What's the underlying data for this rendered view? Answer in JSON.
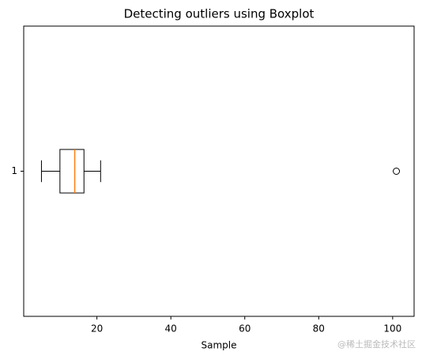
{
  "chart_data": {
    "type": "boxplot",
    "orientation": "horizontal",
    "title": "Detecting outliers using Boxplot",
    "xlabel": "Sample",
    "categories": [
      "1"
    ],
    "boxes": [
      {
        "whislo": 5,
        "q1": 10,
        "med": 14,
        "q3": 16.5,
        "whishi": 21,
        "fliers": [
          101
        ]
      }
    ],
    "median_color": "#ff7f0e",
    "box_color": "#000000",
    "xlim": [
      0.2,
      105.8
    ],
    "xticks": [
      20,
      40,
      60,
      80,
      100
    ],
    "ylim": [
      0.5,
      1.5
    ],
    "grid": false
  },
  "watermark": "@稀土掘金技术社区"
}
